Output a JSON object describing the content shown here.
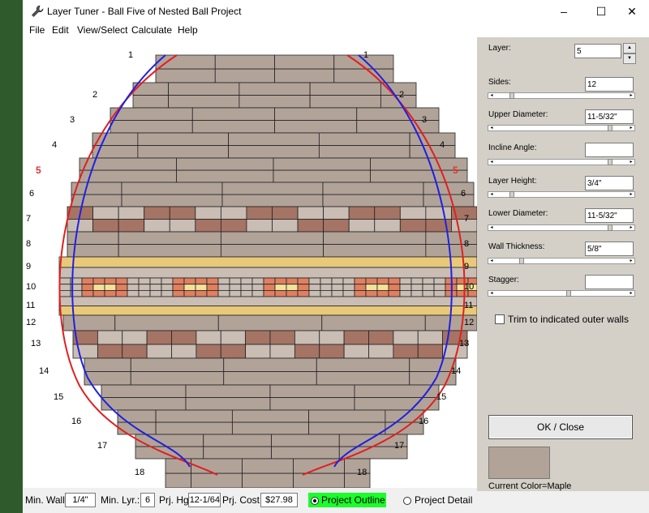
{
  "window": {
    "title": "Layer Tuner - Ball Five of Nested Ball Project",
    "minimize": "–",
    "maximize": "☐",
    "close": "✕"
  },
  "menu": [
    "File",
    "Edit",
    "View/Select",
    "Calculate",
    "Help"
  ],
  "drawing": {
    "left_labels": [
      "1",
      "2",
      "3",
      "4",
      "5",
      "6",
      "7",
      "8",
      "9",
      "10",
      "11",
      "12",
      "13",
      "14",
      "15",
      "16",
      "17",
      "18"
    ],
    "right_labels": [
      "1",
      "2",
      "3",
      "4",
      "5",
      "6",
      "7",
      "8",
      "9",
      "10",
      "11",
      "12",
      "13",
      "14",
      "15",
      "16",
      "17",
      "18"
    ],
    "highlight_layer": "5",
    "colors": {
      "maple": "#b2a399",
      "walnut": "#a57464",
      "yellow": "#e8c97a",
      "pale": "#f3e29a",
      "salmon": "#e08060",
      "light": "#c9bdb4",
      "outline_outer": "#e02020",
      "outline_inner": "#2020e0"
    }
  },
  "panel": {
    "layer_label": "Layer:",
    "layer_value": "5",
    "sides_label": "Sides:",
    "sides_value": "12",
    "sides_slider": 0.1,
    "upper_diameter_label": "Upper Diameter:",
    "upper_diameter_value": "11-5/32\"",
    "upper_diameter_slider": 0.88,
    "incline_label": "Incline Angle:",
    "incline_value": "",
    "incline_slider": 0.88,
    "layer_height_label": "Layer Height:",
    "layer_height_value": "3/4\"",
    "layer_height_slider": 0.1,
    "lower_diameter_label": "Lower Diameter:",
    "lower_diameter_value": "11-5/32\"",
    "lower_diameter_slider": 0.88,
    "wall_thickness_label": "Wall Thickness:",
    "wall_thickness_value": "5/8\"",
    "wall_thickness_slider": 0.18,
    "stagger_label": "Stagger:",
    "stagger_value": "",
    "stagger_slider": 0.55,
    "trim_label": "Trim to indicated outer walls",
    "ok_label": "OK / Close",
    "current_color": "Current Color=Maple"
  },
  "status": {
    "min_wall_label": "Min. Wall:",
    "min_wall_value": "1/4\"",
    "min_lyr_label": "Min. Lyr.:",
    "min_lyr_value": "6",
    "prj_hgt_label": "Prj. Hgt",
    "prj_hgt_value": "12-1/64\"",
    "prj_cost_label": "Prj. Cost:",
    "prj_cost_value": "$27.98",
    "project_outline": "Project Outline",
    "project_detail": "Project Detail"
  }
}
